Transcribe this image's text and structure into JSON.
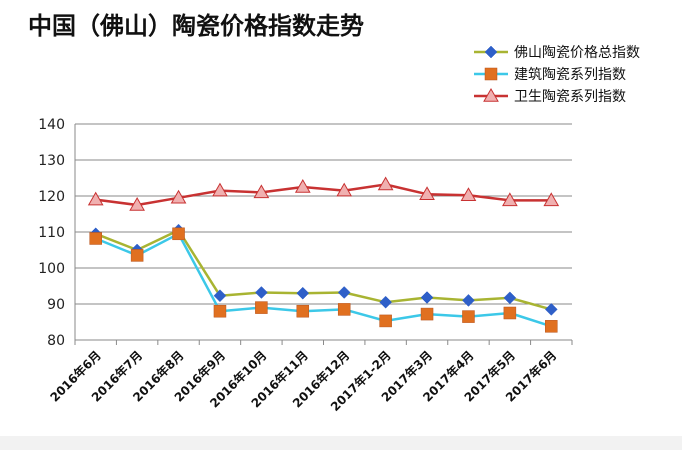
{
  "chart_data": {
    "type": "line",
    "title": "中国（佛山）陶瓷价格指数走势",
    "categories": [
      "2016年6月",
      "2016年7月",
      "2016年8月",
      "2016年9月",
      "2016年10月",
      "2016年11月",
      "2016年12月",
      "2017年1-2月",
      "2017年3月",
      "2017年4月",
      "2017年5月",
      "2017年6月"
    ],
    "ylim": [
      80,
      140
    ],
    "yticks": [
      80,
      90,
      100,
      110,
      120,
      130,
      140
    ],
    "grid": true,
    "legend_position": "top-right",
    "series": [
      {
        "name": "佛山陶瓷价格总指数",
        "line_color": "#a8b432",
        "marker": "diamond",
        "marker_color": "#2e5fc8",
        "values": [
          109.5,
          105.0,
          110.5,
          92.3,
          93.2,
          93.0,
          93.2,
          90.5,
          91.8,
          91.0,
          91.7,
          88.5
        ]
      },
      {
        "name": "建筑陶瓷系列指数",
        "line_color": "#3cc8e8",
        "marker": "square",
        "marker_color": "#e07020",
        "values": [
          108.2,
          103.5,
          109.5,
          88.0,
          89.0,
          88.0,
          88.5,
          85.3,
          87.2,
          86.5,
          87.5,
          83.8
        ]
      },
      {
        "name": "卫生陶瓷系列指数",
        "line_color": "#c83232",
        "marker": "triangle",
        "marker_color": "#f0b0b0",
        "values": [
          119.0,
          117.5,
          119.5,
          121.5,
          121.0,
          122.5,
          121.5,
          123.2,
          120.5,
          120.2,
          118.8,
          118.8
        ]
      }
    ]
  }
}
